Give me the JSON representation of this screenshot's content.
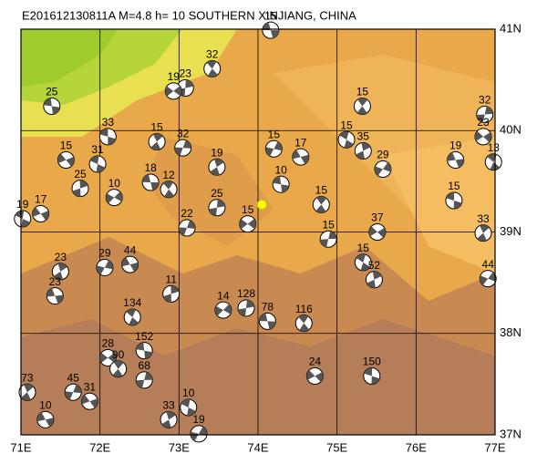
{
  "map": {
    "title": "E201612130811A M=4.8 h= 10 SOUTHERN XINJIANG, CHINA",
    "xlim": [
      71,
      77
    ],
    "ylim": [
      37,
      41
    ],
    "xticks": [
      {
        "value": 71,
        "label": "71E"
      },
      {
        "value": 72,
        "label": "72E"
      },
      {
        "value": 73,
        "label": "73E"
      },
      {
        "value": 74,
        "label": "74E"
      },
      {
        "value": 75,
        "label": "75E"
      },
      {
        "value": 76,
        "label": "76E"
      },
      {
        "value": 77,
        "label": "77E"
      }
    ],
    "yticks": [
      {
        "value": 37,
        "label": "37N"
      },
      {
        "value": 38,
        "label": "38N"
      },
      {
        "value": 39,
        "label": "39N"
      },
      {
        "value": 40,
        "label": "40N"
      },
      {
        "value": 41,
        "label": "41N"
      }
    ],
    "epicenter": {
      "lon": 74.05,
      "lat": 39.27,
      "color": "#ffff00"
    },
    "events": [
      {
        "lon": 74.16,
        "lat": 40.99,
        "depth": 15
      },
      {
        "lon": 73.42,
        "lat": 40.61,
        "depth": 32
      },
      {
        "lon": 73.08,
        "lat": 40.42,
        "depth": 23
      },
      {
        "lon": 72.93,
        "lat": 40.39,
        "depth": 19
      },
      {
        "lon": 71.39,
        "lat": 40.24,
        "depth": 25
      },
      {
        "lon": 75.32,
        "lat": 40.24,
        "depth": 15
      },
      {
        "lon": 76.87,
        "lat": 40.16,
        "depth": 32
      },
      {
        "lon": 76.85,
        "lat": 39.94,
        "depth": 23
      },
      {
        "lon": 72.1,
        "lat": 39.94,
        "depth": 33
      },
      {
        "lon": 72.72,
        "lat": 39.89,
        "depth": 15
      },
      {
        "lon": 73.05,
        "lat": 39.83,
        "depth": 32
      },
      {
        "lon": 71.57,
        "lat": 39.71,
        "depth": 15
      },
      {
        "lon": 71.97,
        "lat": 39.67,
        "depth": 31
      },
      {
        "lon": 73.48,
        "lat": 39.64,
        "depth": 19
      },
      {
        "lon": 74.2,
        "lat": 39.82,
        "depth": 15
      },
      {
        "lon": 74.54,
        "lat": 39.74,
        "depth": 17
      },
      {
        "lon": 75.12,
        "lat": 39.91,
        "depth": 15
      },
      {
        "lon": 75.33,
        "lat": 39.8,
        "depth": 35
      },
      {
        "lon": 75.58,
        "lat": 39.62,
        "depth": 29
      },
      {
        "lon": 76.5,
        "lat": 39.71,
        "depth": 19
      },
      {
        "lon": 76.98,
        "lat": 39.69,
        "depth": 13
      },
      {
        "lon": 71.75,
        "lat": 39.43,
        "depth": 25
      },
      {
        "lon": 72.18,
        "lat": 39.34,
        "depth": 10
      },
      {
        "lon": 72.64,
        "lat": 39.49,
        "depth": 18
      },
      {
        "lon": 72.87,
        "lat": 39.42,
        "depth": 12
      },
      {
        "lon": 73.48,
        "lat": 39.24,
        "depth": 25
      },
      {
        "lon": 73.87,
        "lat": 39.08,
        "depth": 15
      },
      {
        "lon": 74.29,
        "lat": 39.47,
        "depth": 10
      },
      {
        "lon": 74.8,
        "lat": 39.27,
        "depth": 15
      },
      {
        "lon": 74.89,
        "lat": 38.93,
        "depth": 15
      },
      {
        "lon": 75.51,
        "lat": 39.0,
        "depth": 37
      },
      {
        "lon": 76.48,
        "lat": 39.31,
        "depth": 15
      },
      {
        "lon": 76.85,
        "lat": 38.99,
        "depth": 33
      },
      {
        "lon": 73.1,
        "lat": 39.04,
        "depth": 22
      },
      {
        "lon": 71.25,
        "lat": 39.18,
        "depth": 17
      },
      {
        "lon": 71.02,
        "lat": 39.13,
        "depth": 19
      },
      {
        "lon": 71.5,
        "lat": 38.61,
        "depth": 23
      },
      {
        "lon": 72.06,
        "lat": 38.65,
        "depth": 29
      },
      {
        "lon": 72.38,
        "lat": 38.68,
        "depth": 44
      },
      {
        "lon": 75.33,
        "lat": 38.7,
        "depth": 15
      },
      {
        "lon": 75.47,
        "lat": 38.53,
        "depth": 52
      },
      {
        "lon": 76.91,
        "lat": 38.54,
        "depth": 44
      },
      {
        "lon": 71.43,
        "lat": 38.37,
        "depth": 23
      },
      {
        "lon": 72.41,
        "lat": 38.16,
        "depth": 134
      },
      {
        "lon": 72.9,
        "lat": 38.39,
        "depth": 11
      },
      {
        "lon": 73.56,
        "lat": 38.23,
        "depth": 14
      },
      {
        "lon": 74.12,
        "lat": 38.12,
        "depth": 78
      },
      {
        "lon": 74.58,
        "lat": 38.1,
        "depth": 116
      },
      {
        "lon": 73.85,
        "lat": 38.25,
        "depth": 128
      },
      {
        "lon": 72.1,
        "lat": 37.76,
        "depth": 28
      },
      {
        "lon": 72.56,
        "lat": 37.83,
        "depth": 152
      },
      {
        "lon": 72.23,
        "lat": 37.65,
        "depth": 90
      },
      {
        "lon": 72.56,
        "lat": 37.54,
        "depth": 68
      },
      {
        "lon": 74.72,
        "lat": 37.58,
        "depth": 24
      },
      {
        "lon": 75.44,
        "lat": 37.58,
        "depth": 150
      },
      {
        "lon": 71.08,
        "lat": 37.42,
        "depth": 73
      },
      {
        "lon": 71.66,
        "lat": 37.42,
        "depth": 45
      },
      {
        "lon": 71.87,
        "lat": 37.33,
        "depth": 31
      },
      {
        "lon": 73.12,
        "lat": 37.27,
        "depth": 10
      },
      {
        "lon": 72.87,
        "lat": 37.15,
        "depth": 33
      },
      {
        "lon": 73.25,
        "lat": 37.01,
        "depth": 19
      },
      {
        "lon": 71.31,
        "lat": 37.15,
        "depth": 10
      }
    ]
  }
}
